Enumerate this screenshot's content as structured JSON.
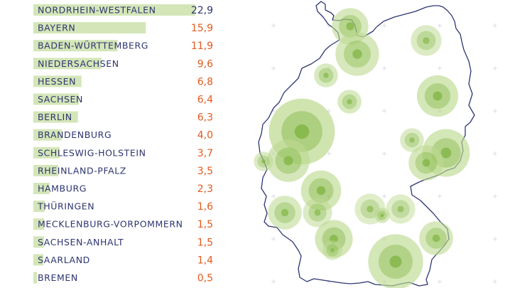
{
  "chart_data": {
    "type": "bar",
    "orientation": "horizontal",
    "title": "",
    "xlabel": "",
    "ylabel": "",
    "xlim": [
      0,
      22.9
    ],
    "grid": false,
    "legend": "none",
    "categories": [
      "NORDRHEIN-WESTFALEN",
      "BAYERN",
      "BADEN-WÜRTTEMBERG",
      "NIEDERSACHSEN",
      "HESSEN",
      "SACHSEN",
      "BERLIN",
      "BRANDENBURG",
      "SCHLESWIG-HOLSTEIN",
      "RHEINLAND-PFALZ",
      "HAMBURG",
      "THÜRINGEN",
      "MECKLENBURG-VORPOMMERN",
      "SACHSEN-ANHALT",
      "SAARLAND",
      "BREMEN"
    ],
    "values": [
      22.9,
      15.9,
      11.9,
      9.6,
      6.8,
      6.4,
      6.3,
      4.0,
      3.7,
      3.5,
      2.3,
      1.6,
      1.5,
      1.5,
      1.4,
      0.5
    ],
    "value_labels": [
      "22,9",
      "15,9",
      "11,9",
      "9,6",
      "6,8",
      "6,4",
      "6,3",
      "4,0",
      "3,7",
      "3,5",
      "2,3",
      "1,6",
      "1,5",
      "1,5",
      "1,4",
      "0,5"
    ]
  },
  "map": {
    "type": "proportional-circles",
    "region": "germany-outline",
    "circles": [
      {
        "size": 7.0,
        "level": 0.5
      },
      {
        "size": 10.0,
        "level": 0.5
      },
      {
        "size": 5.0,
        "level": 0.3
      },
      {
        "size": 9.0,
        "level": 0.6
      },
      {
        "size": 3.0,
        "level": 0.4
      },
      {
        "size": 3.0,
        "level": 0.4
      },
      {
        "size": 22.9,
        "level": 0.75
      },
      {
        "size": 9.5,
        "level": 0.55
      },
      {
        "size": 2.0,
        "level": 0.3
      },
      {
        "size": 11.9,
        "level": 0.6
      },
      {
        "size": 8.5,
        "level": 0.6
      },
      {
        "size": 6.5,
        "level": 0.5
      },
      {
        "size": 3.0,
        "level": 0.3
      },
      {
        "size": 6.0,
        "level": 0.4
      },
      {
        "size": 5.0,
        "level": 0.2
      },
      {
        "size": 1.2,
        "level": 0.5
      },
      {
        "size": 4.5,
        "level": 0.2
      },
      {
        "size": 15.9,
        "level": 0.6
      },
      {
        "size": 4.5,
        "level": 0.3
      },
      {
        "size": 7.5,
        "level": 0.6
      },
      {
        "size": 6.0,
        "level": 0.5
      },
      {
        "size": 2.0,
        "level": 0.3
      }
    ]
  },
  "colors": {
    "bar": "#d4e6b8",
    "label_text": "#2d3570",
    "value_text": "#e35a1e",
    "top_value_text": "#2d3570",
    "outline": "#2d3570",
    "circle_outer": "#bcd98f",
    "circle_inner": "#7fb441",
    "grid_mark": "#d8dcea"
  }
}
